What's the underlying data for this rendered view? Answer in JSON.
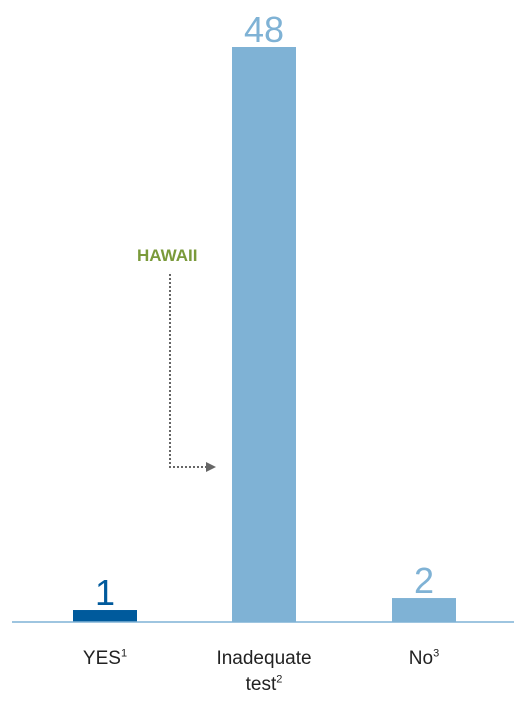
{
  "chart_data": {
    "type": "bar",
    "categories": [
      "YES",
      "Inadequate test",
      "No"
    ],
    "category_lines": [
      [
        "YES"
      ],
      [
        "Inadequate",
        "test"
      ],
      [
        "No"
      ]
    ],
    "footnotes": [
      "1",
      "2",
      "3"
    ],
    "values": [
      1,
      48,
      2
    ],
    "value_labels": [
      "1",
      "48",
      "2"
    ],
    "bar_colors": [
      "#005a9c",
      "#7fb2d5",
      "#7fb2d5"
    ],
    "value_label_colors": [
      "#005a9c",
      "#7fb2d5",
      "#7fb2d5"
    ],
    "axis_color": "#7fb2d5",
    "ylim": [
      0,
      48
    ],
    "grid": false,
    "annotation": {
      "text": "HAWAII",
      "color": "#7a9a3a",
      "arrow_color": "#666666",
      "points_to": "Inadequate test"
    }
  }
}
